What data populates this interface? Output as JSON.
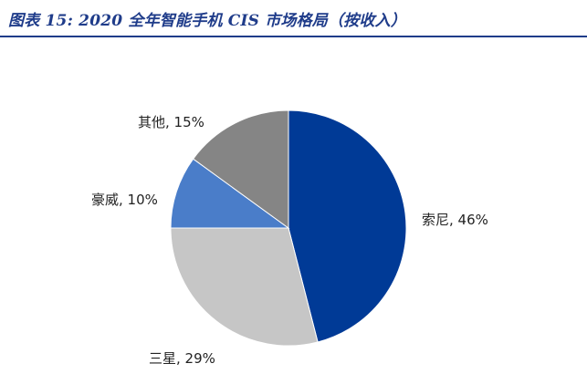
{
  "header": {
    "title": "图表 15: 2020 全年智能手机 CIS 市场格局（按收入）"
  },
  "chart_data": {
    "type": "pie",
    "title": "图表 15: 2020 全年智能手机 CIS 市场格局（按收入）",
    "unit": "%",
    "legend": "none",
    "slices": [
      {
        "label": "索尼",
        "value": 46,
        "color": "#003a96",
        "text": "索尼, 46%"
      },
      {
        "label": "三星",
        "value": 29,
        "color": "#c6c6c6",
        "text": "三星, 29%"
      },
      {
        "label": "豪威",
        "value": 10,
        "color": "#4a7dc9",
        "text": "豪威, 10%"
      },
      {
        "label": "其他",
        "value": 15,
        "color": "#858585",
        "text": "其他, 15%"
      }
    ]
  }
}
